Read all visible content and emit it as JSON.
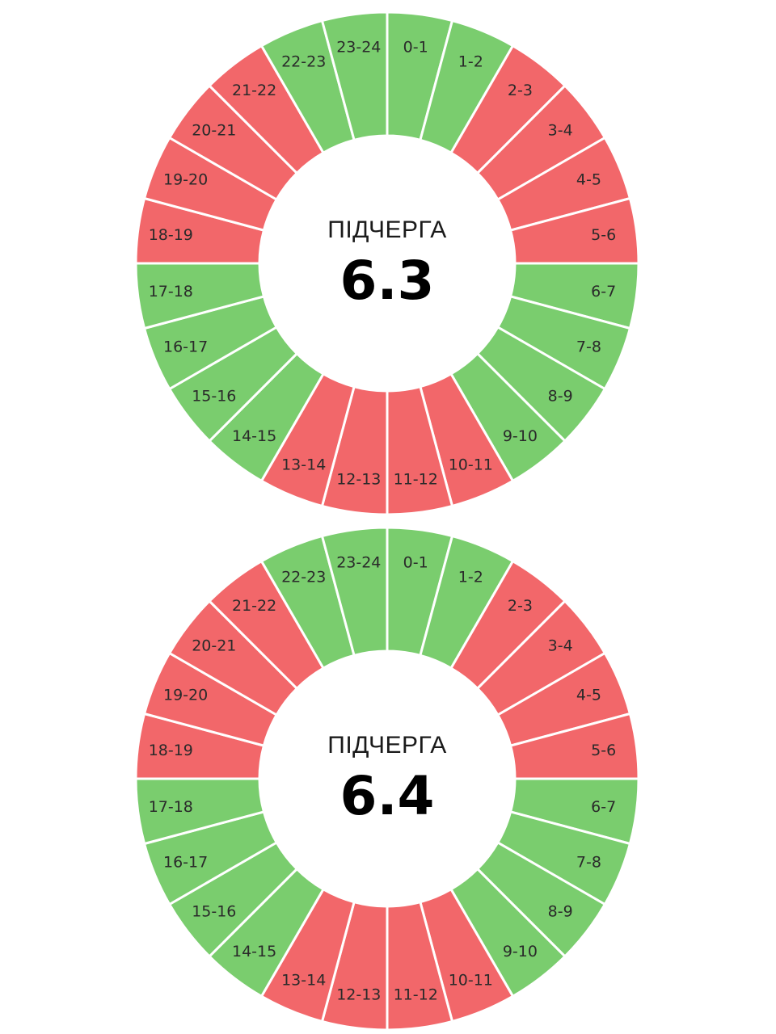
{
  "colors": {
    "on": "#7acd6e",
    "off": "#f2676a",
    "divider": "#ffffff"
  },
  "legend_keys": {
    "on": "green",
    "off": "red"
  },
  "chart_data": [
    {
      "type": "pie",
      "title": "ПІДЧЕРГА",
      "subtitle": "6.3",
      "categories": [
        "0-1",
        "1-2",
        "2-3",
        "3-4",
        "4-5",
        "5-6",
        "6-7",
        "7-8",
        "8-9",
        "9-10",
        "10-11",
        "11-12",
        "12-13",
        "13-14",
        "14-15",
        "15-16",
        "16-17",
        "17-18",
        "18-19",
        "19-20",
        "20-21",
        "21-22",
        "22-23",
        "23-24"
      ],
      "values": [
        1,
        1,
        1,
        1,
        1,
        1,
        1,
        1,
        1,
        1,
        1,
        1,
        1,
        1,
        1,
        1,
        1,
        1,
        1,
        1,
        1,
        1,
        1,
        1
      ],
      "status": [
        "on",
        "on",
        "off",
        "off",
        "off",
        "off",
        "on",
        "on",
        "on",
        "on",
        "off",
        "off",
        "off",
        "off",
        "on",
        "on",
        "on",
        "on",
        "off",
        "off",
        "off",
        "off",
        "on",
        "on"
      ]
    },
    {
      "type": "pie",
      "title": "ПІДЧЕРГА",
      "subtitle": "6.4",
      "categories": [
        "0-1",
        "1-2",
        "2-3",
        "3-4",
        "4-5",
        "5-6",
        "6-7",
        "7-8",
        "8-9",
        "9-10",
        "10-11",
        "11-12",
        "12-13",
        "13-14",
        "14-15",
        "15-16",
        "16-17",
        "17-18",
        "18-19",
        "19-20",
        "20-21",
        "21-22",
        "22-23",
        "23-24"
      ],
      "values": [
        1,
        1,
        1,
        1,
        1,
        1,
        1,
        1,
        1,
        1,
        1,
        1,
        1,
        1,
        1,
        1,
        1,
        1,
        1,
        1,
        1,
        1,
        1,
        1
      ],
      "status": [
        "on",
        "on",
        "off",
        "off",
        "off",
        "off",
        "on",
        "on",
        "on",
        "on",
        "off",
        "off",
        "off",
        "off",
        "on",
        "on",
        "on",
        "on",
        "off",
        "off",
        "off",
        "off",
        "on",
        "on"
      ]
    }
  ]
}
